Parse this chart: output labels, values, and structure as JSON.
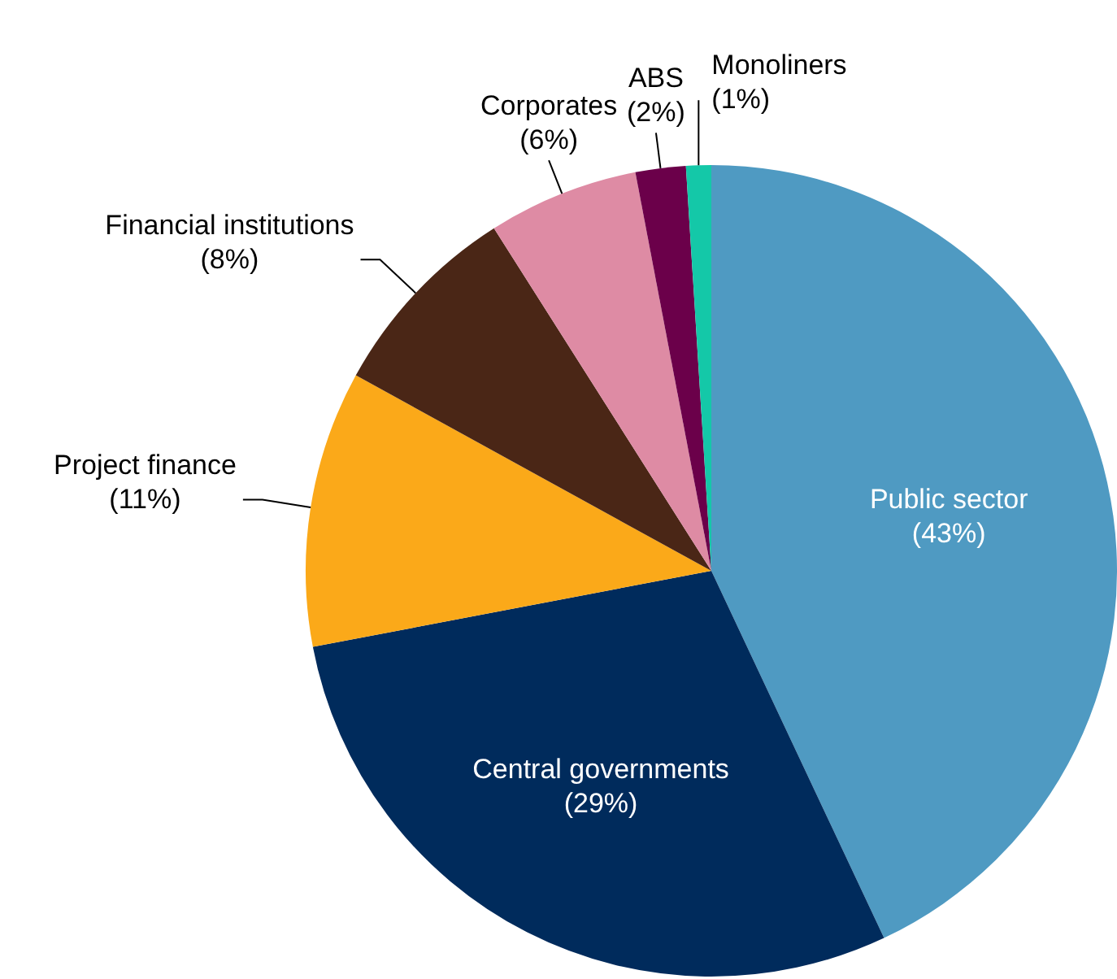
{
  "chart_data": {
    "type": "pie",
    "categories": [
      "Public sector",
      "Central governments",
      "Project finance",
      "Financial institutions",
      "Corporates",
      "ABS",
      "Monoliners"
    ],
    "values": [
      43,
      29,
      11,
      8,
      6,
      2,
      1
    ],
    "value_labels": [
      "(43%)",
      "(29%)",
      "(11%)",
      "(8%)",
      "(6%)",
      "(2%)",
      "(1%)"
    ],
    "colors": [
      "#4f9ac2",
      "#002b5c",
      "#fba919",
      "#4a2616",
      "#de8ba4",
      "#6b004a",
      "#14c8a8"
    ],
    "legend": false
  }
}
